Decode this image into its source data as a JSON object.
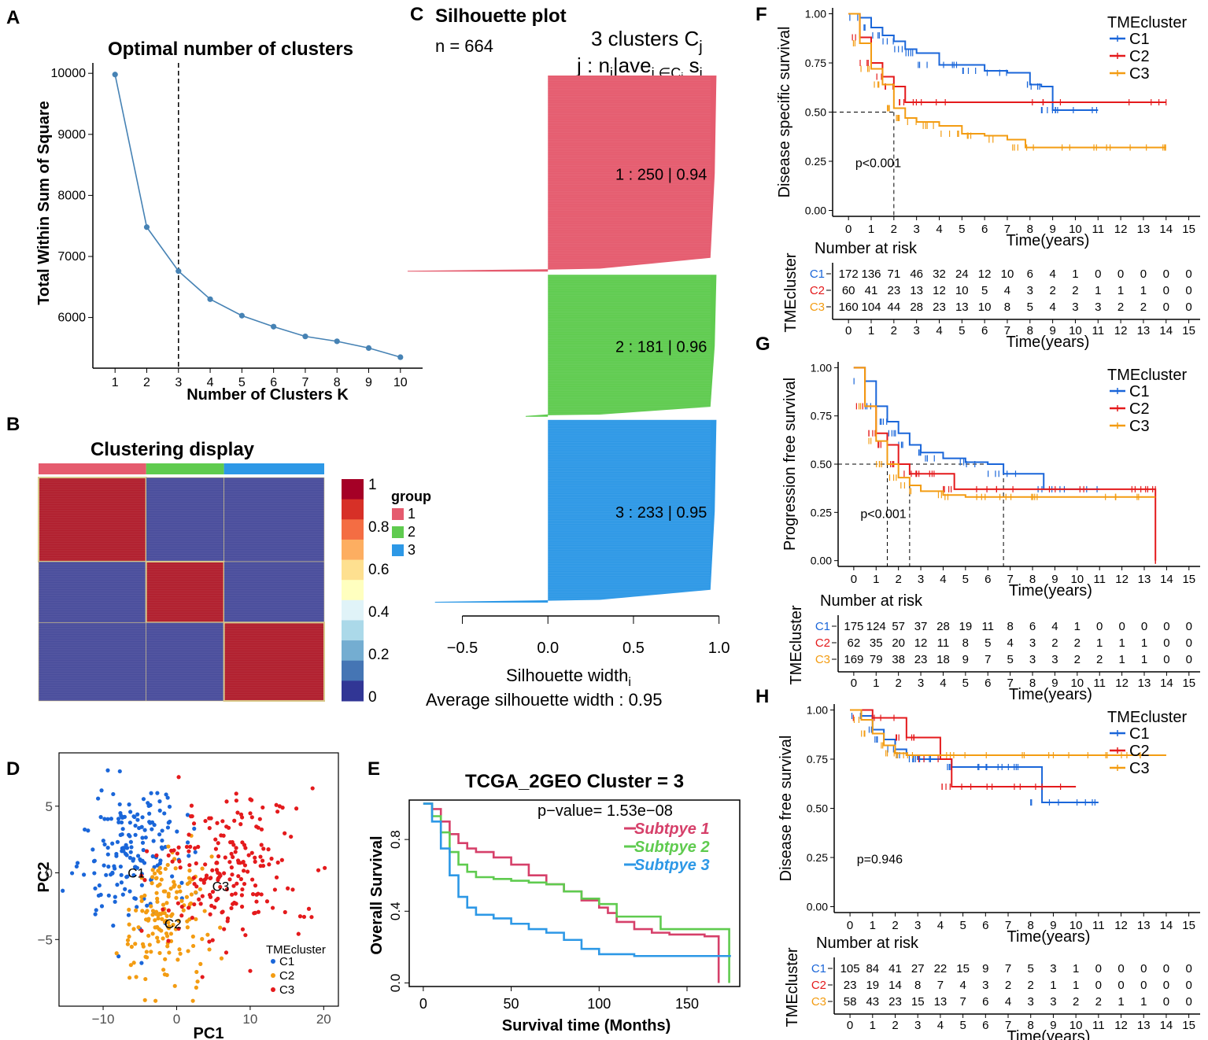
{
  "panel_labels": {
    "A": "A",
    "B": "B",
    "C": "C",
    "D": "D",
    "E": "E",
    "F": "F",
    "G": "G",
    "H": "H"
  },
  "chart_data": [
    {
      "id": "A",
      "type": "line",
      "title": "Optimal number of clusters",
      "xlabel": "Number of Clusters K",
      "ylabel": "Total Within Sum of Square",
      "x": [
        1,
        2,
        3,
        4,
        5,
        6,
        7,
        8,
        9,
        10
      ],
      "y": [
        9980,
        7480,
        6760,
        6300,
        6030,
        5850,
        5690,
        5610,
        5500,
        5350
      ],
      "xlim": [
        0.3,
        10.7
      ],
      "ylim": [
        5170,
        10170
      ],
      "xticks": [
        "1",
        "2",
        "3",
        "4",
        "5",
        "6",
        "7",
        "8",
        "9",
        "10"
      ],
      "yticks": [
        6000,
        7000,
        8000,
        9000,
        10000
      ],
      "ytick_labels": [
        "6000",
        "7000",
        "8000",
        "9000",
        "10000"
      ],
      "vline_x": 3,
      "color": "#4682b4"
    },
    {
      "id": "B",
      "type": "heatmap",
      "title": "Clustering display",
      "legend_title": "group",
      "groups": [
        {
          "label": "1",
          "color": "#e55b6e",
          "n": 250
        },
        {
          "label": "2",
          "color": "#5fcb4f",
          "n": 181
        },
        {
          "label": "3",
          "color": "#2d98e6",
          "n": 233
        }
      ],
      "colorbar_ticks": [
        "1",
        "0.8",
        "0.6",
        "0.4",
        "0.2",
        "0"
      ],
      "colorbar_colors": [
        "#a50026",
        "#d73027",
        "#f46d43",
        "#fdae61",
        "#fee090",
        "#ffffbf",
        "#e0f3f8",
        "#abd9e9",
        "#74add1",
        "#4575b4",
        "#313695"
      ],
      "high_color": "#b11f2e",
      "low_color": "#4a4e9c"
    },
    {
      "id": "C",
      "type": "bar",
      "title": "Silhouette plot",
      "n_label": "n = 664",
      "header": "3 clusters C",
      "header_sub": "j",
      "col_header": "j : n",
      "xlabel": "Silhouette width",
      "xlabel_sub": "i",
      "avg_label": "Average silhouette width :  0.95",
      "xticks": [
        "−0.5",
        "0.0",
        "0.5",
        "1.0"
      ],
      "xtick_values": [
        -0.5,
        0.0,
        0.5,
        1.0
      ],
      "xlim": [
        -0.53,
        1.02
      ],
      "clusters": [
        {
          "label": "1 :  250  |  0.94",
          "n": 250,
          "avg": 0.94,
          "min": -0.82,
          "color": "#e55b6e"
        },
        {
          "label": "2 :  181  |  0.96",
          "n": 181,
          "avg": 0.96,
          "min": -0.13,
          "color": "#5fcb4f"
        },
        {
          "label": "3 :  233  |  0.95",
          "n": 233,
          "avg": 0.95,
          "min": -0.66,
          "color": "#2d98e6"
        }
      ]
    },
    {
      "id": "D",
      "type": "scatter",
      "xlabel": "PC1",
      "ylabel": "PC2",
      "xlim": [
        -16,
        22
      ],
      "ylim": [
        -10,
        9
      ],
      "xticks": [
        "−10",
        "0",
        "10",
        "20"
      ],
      "xtick_values": [
        -10,
        0,
        10,
        20
      ],
      "yticks": [
        "5",
        "0",
        "−5"
      ],
      "ytick_values": [
        5,
        0,
        -5
      ],
      "legend_title": "TMEcluster",
      "series": [
        {
          "name": "C1",
          "color": "#1a66d9",
          "center": [
            -6.5,
            1.8
          ],
          "spread": [
            3.4,
            2.8
          ],
          "n": 172
        },
        {
          "name": "C2",
          "color": "#f39c12",
          "center": [
            -1.5,
            -3.0
          ],
          "spread": [
            2.6,
            2.6
          ],
          "n": 160
        },
        {
          "name": "C3",
          "color": "#e41a1c",
          "center": [
            7.0,
            0.5
          ],
          "spread": [
            4.6,
            3.0
          ],
          "n": 200
        }
      ],
      "centroid_labels": [
        {
          "text": "C1",
          "x": -5.5,
          "y": 0.0
        },
        {
          "text": "C2",
          "x": -0.5,
          "y": -3.8
        },
        {
          "text": "C3",
          "x": 6.0,
          "y": -1.0
        }
      ]
    },
    {
      "id": "E",
      "type": "line",
      "title": "TCGA_2GEO Cluster = 3",
      "pvalue": "p−value= 1.53e−08",
      "xlabel": "Survival time (Months)",
      "ylabel": "Overall Survival",
      "xlim": [
        -8,
        180
      ],
      "ylim": [
        -0.02,
        1.02
      ],
      "xticks": [
        "0",
        "50",
        "100",
        "150"
      ],
      "xtick_values": [
        0,
        50,
        100,
        150
      ],
      "yticks": [
        "0.0",
        "0.4",
        "0.8"
      ],
      "ytick_values": [
        0,
        0.4,
        0.8
      ],
      "series": [
        {
          "name": "Subtpye 1",
          "color": "#d6406a",
          "x": [
            0,
            5,
            10,
            15,
            20,
            25,
            30,
            40,
            50,
            60,
            70,
            80,
            90,
            100,
            105,
            110,
            120,
            130,
            140,
            150,
            160,
            168
          ],
          "y": [
            1,
            0.97,
            0.9,
            0.83,
            0.78,
            0.75,
            0.73,
            0.7,
            0.66,
            0.6,
            0.55,
            0.51,
            0.46,
            0.42,
            0.39,
            0.34,
            0.3,
            0.28,
            0.27,
            0.27,
            0.26,
            0.0
          ]
        },
        {
          "name": "Subtpye 2",
          "color": "#5fcb4f",
          "x": [
            0,
            5,
            10,
            15,
            20,
            25,
            30,
            40,
            50,
            60,
            70,
            80,
            90,
            100,
            110,
            120,
            135,
            150,
            165,
            174
          ],
          "y": [
            1,
            0.93,
            0.84,
            0.73,
            0.66,
            0.62,
            0.59,
            0.58,
            0.57,
            0.56,
            0.55,
            0.51,
            0.47,
            0.44,
            0.37,
            0.37,
            0.3,
            0.3,
            0.3,
            0.0
          ]
        },
        {
          "name": "Subtpye 3",
          "color": "#2d98e6",
          "x": [
            0,
            5,
            10,
            15,
            20,
            25,
            30,
            40,
            50,
            60,
            70,
            80,
            90,
            100,
            110,
            120,
            130,
            150,
            175
          ],
          "y": [
            1,
            0.9,
            0.75,
            0.6,
            0.48,
            0.42,
            0.38,
            0.36,
            0.33,
            0.3,
            0.28,
            0.24,
            0.19,
            0.16,
            0.16,
            0.15,
            0.15,
            0.15,
            0.15
          ]
        }
      ]
    },
    {
      "id": "F",
      "type": "line",
      "ylabel": "Disease specific survival",
      "xlabel": "Time(years)",
      "pvalue": "p<0.001",
      "legend_title": "TMEcluster",
      "xlim": [
        -0.7,
        15.5
      ],
      "ylim": [
        -0.03,
        1.03
      ],
      "xticks": [
        "0",
        "1",
        "2",
        "3",
        "4",
        "5",
        "6",
        "7",
        "8",
        "9",
        "10",
        "11",
        "12",
        "13",
        "14",
        "15"
      ],
      "yticks": [
        "0.00",
        "0.25",
        "0.50",
        "0.75",
        "1.00"
      ],
      "ytick_values": [
        0,
        0.25,
        0.5,
        0.75,
        1
      ],
      "median_lines": [
        2.0
      ],
      "series": [
        {
          "name": "C1",
          "color": "#1a66d9",
          "x": [
            0,
            0.5,
            1,
            1.5,
            2,
            2.5,
            3,
            4,
            5,
            6,
            7,
            8,
            8.5,
            9,
            10,
            11
          ],
          "y": [
            1,
            0.98,
            0.93,
            0.89,
            0.86,
            0.82,
            0.8,
            0.74,
            0.74,
            0.71,
            0.7,
            0.64,
            0.63,
            0.51,
            0.51,
            0.51
          ]
        },
        {
          "name": "C2",
          "color": "#e41a1c",
          "x": [
            0,
            0.5,
            1,
            1.5,
            2,
            2.5,
            3,
            5,
            10,
            14
          ],
          "y": [
            1,
            0.88,
            0.75,
            0.68,
            0.63,
            0.55,
            0.55,
            0.55,
            0.55,
            0.55
          ]
        },
        {
          "name": "C3",
          "color": "#f39c12",
          "x": [
            0,
            0.5,
            1,
            1.5,
            2,
            2.5,
            3,
            4,
            5,
            6,
            7,
            7.8,
            9,
            11,
            13,
            14
          ],
          "y": [
            1,
            0.85,
            0.72,
            0.64,
            0.52,
            0.47,
            0.45,
            0.43,
            0.39,
            0.38,
            0.36,
            0.32,
            0.32,
            0.32,
            0.32,
            0.32
          ]
        }
      ],
      "risk": {
        "title": "Number at risk",
        "strata_label": "TMEcluster",
        "rows": [
          {
            "name": "C1",
            "color": "#1a66d9",
            "values": [
              "172",
              "136",
              "71",
              "46",
              "32",
              "24",
              "12",
              "10",
              "6",
              "4",
              "1",
              "0",
              "0",
              "0",
              "0",
              "0"
            ]
          },
          {
            "name": "C2",
            "color": "#e41a1c",
            "values": [
              "60",
              "41",
              "23",
              "13",
              "12",
              "10",
              "5",
              "4",
              "3",
              "2",
              "2",
              "1",
              "1",
              "1",
              "0",
              "0"
            ]
          },
          {
            "name": "C3",
            "color": "#f39c12",
            "values": [
              "160",
              "104",
              "44",
              "28",
              "23",
              "13",
              "10",
              "8",
              "5",
              "4",
              "3",
              "3",
              "2",
              "2",
              "0",
              "0"
            ]
          }
        ]
      }
    },
    {
      "id": "G",
      "type": "line",
      "ylabel": "Progression free survival",
      "xlabel": "Time(years)",
      "pvalue": "p<0.001",
      "legend_title": "TMEcluster",
      "xlim": [
        -0.7,
        15.5
      ],
      "ylim": [
        -0.03,
        1.03
      ],
      "xticks": [
        "0",
        "1",
        "2",
        "3",
        "4",
        "5",
        "6",
        "7",
        "8",
        "9",
        "10",
        "11",
        "12",
        "13",
        "14",
        "15"
      ],
      "yticks": [
        "0.00",
        "0.25",
        "0.50",
        "0.75",
        "1.00"
      ],
      "ytick_values": [
        0,
        0.25,
        0.5,
        0.75,
        1
      ],
      "median_lines": [
        1.5,
        2.5,
        6.7
      ],
      "series": [
        {
          "name": "C1",
          "color": "#1a66d9",
          "x": [
            0,
            0.5,
            1,
            1.5,
            2,
            2.5,
            3,
            4,
            5,
            6,
            6.7,
            8,
            8.5,
            10,
            11
          ],
          "y": [
            1,
            0.93,
            0.8,
            0.72,
            0.66,
            0.6,
            0.56,
            0.53,
            0.51,
            0.5,
            0.45,
            0.45,
            0.37,
            0.37,
            0.37
          ]
        },
        {
          "name": "C2",
          "color": "#e41a1c",
          "x": [
            0,
            0.5,
            1,
            1.5,
            2,
            2.5,
            3,
            4,
            4.5,
            6,
            8,
            10,
            12,
            13,
            13.5,
            13.5
          ],
          "y": [
            1,
            0.8,
            0.66,
            0.6,
            0.5,
            0.45,
            0.45,
            0.45,
            0.37,
            0.37,
            0.37,
            0.37,
            0.37,
            0.37,
            0.37,
            0.0
          ]
        },
        {
          "name": "C3",
          "color": "#f39c12",
          "x": [
            0,
            0.5,
            1,
            1.5,
            2,
            2.5,
            3,
            4,
            5,
            6,
            8,
            10,
            12,
            13.5
          ],
          "y": [
            1,
            0.8,
            0.62,
            0.5,
            0.43,
            0.39,
            0.36,
            0.34,
            0.33,
            0.33,
            0.33,
            0.33,
            0.33,
            0.33
          ]
        }
      ],
      "risk": {
        "title": "Number at risk",
        "strata_label": "TMEcluster",
        "rows": [
          {
            "name": "C1",
            "color": "#1a66d9",
            "values": [
              "175",
              "124",
              "57",
              "37",
              "28",
              "19",
              "11",
              "8",
              "6",
              "4",
              "1",
              "0",
              "0",
              "0",
              "0",
              "0"
            ]
          },
          {
            "name": "C2",
            "color": "#e41a1c",
            "values": [
              "62",
              "35",
              "20",
              "12",
              "11",
              "8",
              "5",
              "4",
              "3",
              "2",
              "2",
              "1",
              "1",
              "1",
              "0",
              "0"
            ]
          },
          {
            "name": "C3",
            "color": "#f39c12",
            "values": [
              "169",
              "79",
              "38",
              "23",
              "18",
              "9",
              "7",
              "5",
              "3",
              "3",
              "2",
              "2",
              "1",
              "1",
              "0",
              "0"
            ]
          }
        ]
      }
    },
    {
      "id": "H",
      "type": "line",
      "ylabel": "Disease free survival",
      "xlabel": "Time(years)",
      "pvalue": "p=0.946",
      "legend_title": "TMEcluster",
      "xlim": [
        -0.7,
        15.5
      ],
      "ylim": [
        -0.03,
        1.03
      ],
      "xticks": [
        "0",
        "1",
        "2",
        "3",
        "4",
        "5",
        "6",
        "7",
        "8",
        "9",
        "10",
        "11",
        "12",
        "13",
        "14",
        "15"
      ],
      "yticks": [
        "0.00",
        "0.25",
        "0.50",
        "0.75",
        "1.00"
      ],
      "ytick_values": [
        0,
        0.25,
        0.5,
        0.75,
        1
      ],
      "median_lines": [],
      "series": [
        {
          "name": "C1",
          "color": "#1a66d9",
          "x": [
            0,
            0.5,
            1,
            1.5,
            2,
            2.5,
            3,
            4,
            4.5,
            6,
            7,
            8,
            8.5,
            10,
            11
          ],
          "y": [
            1,
            0.97,
            0.9,
            0.85,
            0.8,
            0.77,
            0.75,
            0.75,
            0.71,
            0.71,
            0.71,
            0.71,
            0.53,
            0.53,
            0.53
          ]
        },
        {
          "name": "C2",
          "color": "#e41a1c",
          "x": [
            0,
            1,
            2,
            2.5,
            3,
            4,
            4.5,
            6,
            8,
            10
          ],
          "y": [
            1,
            0.96,
            0.96,
            0.86,
            0.86,
            0.75,
            0.61,
            0.61,
            0.61,
            0.61
          ]
        },
        {
          "name": "C3",
          "color": "#f39c12",
          "x": [
            0,
            0.5,
            1,
            1.5,
            2,
            2.5,
            3,
            5,
            8,
            10,
            12,
            14
          ],
          "y": [
            1,
            0.95,
            0.88,
            0.82,
            0.78,
            0.77,
            0.77,
            0.77,
            0.77,
            0.77,
            0.77,
            0.77
          ]
        }
      ],
      "risk": {
        "title": "Number at risk",
        "strata_label": "TMEcluster",
        "rows": [
          {
            "name": "C1",
            "color": "#1a66d9",
            "values": [
              "105",
              "84",
              "41",
              "27",
              "22",
              "15",
              "9",
              "7",
              "5",
              "3",
              "1",
              "0",
              "0",
              "0",
              "0",
              "0"
            ]
          },
          {
            "name": "C2",
            "color": "#e41a1c",
            "values": [
              "23",
              "19",
              "14",
              "8",
              "7",
              "4",
              "3",
              "2",
              "2",
              "1",
              "1",
              "0",
              "0",
              "0",
              "0",
              "0"
            ]
          },
          {
            "name": "C3",
            "color": "#f39c12",
            "values": [
              "58",
              "43",
              "23",
              "15",
              "13",
              "7",
              "6",
              "4",
              "3",
              "3",
              "2",
              "2",
              "1",
              "1",
              "0",
              "0"
            ]
          }
        ]
      }
    }
  ]
}
